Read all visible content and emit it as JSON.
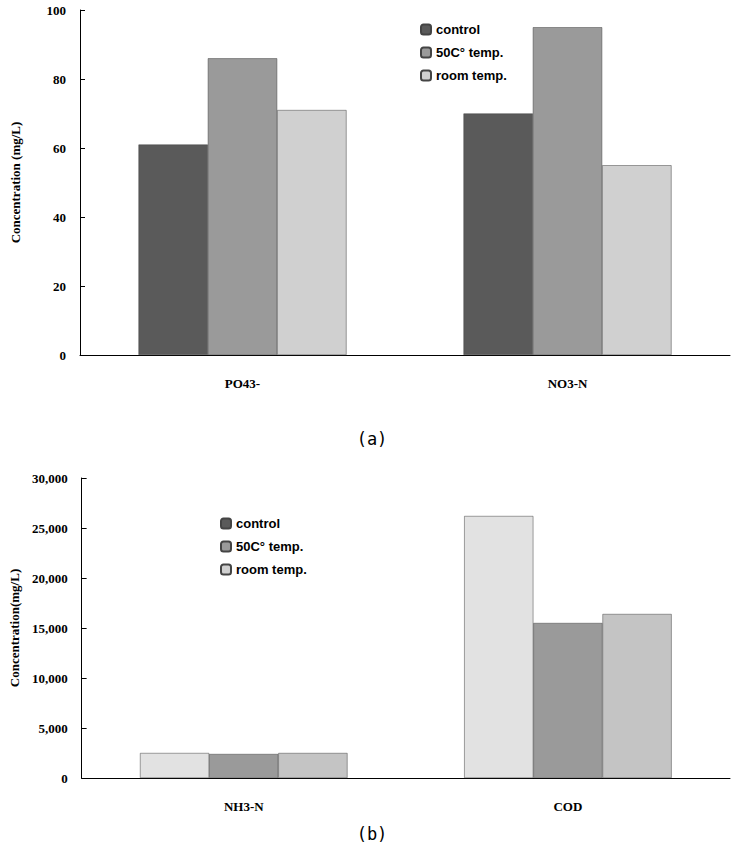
{
  "chart_data": [
    {
      "type": "bar",
      "title": "(a)",
      "y_label": "Concentration (mg/L)",
      "categories": [
        "PO43-",
        "NO3-N"
      ],
      "series": [
        {
          "name": "control",
          "color": "#5a5a5a",
          "values": [
            61,
            70
          ]
        },
        {
          "name": "50C° temp.",
          "color": "#9a9a9a",
          "values": [
            86,
            95
          ]
        },
        {
          "name": "room temp.",
          "color": "#d0d0d0",
          "values": [
            71,
            55
          ]
        }
      ],
      "ylim": [
        0,
        100
      ],
      "yticks": [
        0,
        20,
        40,
        60,
        80,
        100
      ],
      "grid": false,
      "legend": "top"
    },
    {
      "type": "bar",
      "title": "(b)",
      "y_label": "Concentration(mg/L)",
      "categories": [
        "NH3-N",
        "COD"
      ],
      "series": [
        {
          "name": "control",
          "color": "#e2e2e2",
          "values": [
            2500,
            26200
          ]
        },
        {
          "name": "50C° temp.",
          "color": "#9a9a9a",
          "values": [
            2400,
            15500
          ]
        },
        {
          "name": "room temp.",
          "color": "#c4c4c4",
          "values": [
            2500,
            16400
          ]
        }
      ],
      "ylim": [
        0,
        30000
      ],
      "yticks": [
        0,
        5000,
        10000,
        15000,
        20000,
        25000,
        30000
      ],
      "grid": false,
      "legend": "top"
    }
  ]
}
